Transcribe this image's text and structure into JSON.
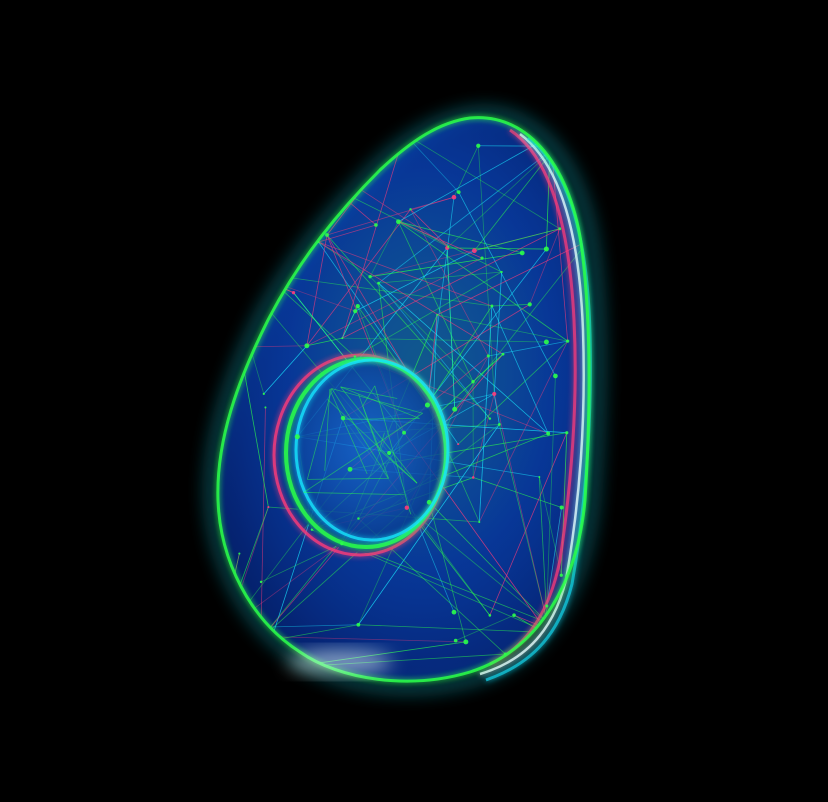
{
  "image": {
    "subject": "avocado-wireframe",
    "background": "#000000",
    "colors": {
      "mesh_green": "#2bff4a",
      "mesh_cyan": "#19e6ff",
      "body_blue": "#0a49c9",
      "body_deep": "#062a8a",
      "glow_magenta": "#ff3b7a",
      "highlight_white": "#e9ffff"
    }
  }
}
